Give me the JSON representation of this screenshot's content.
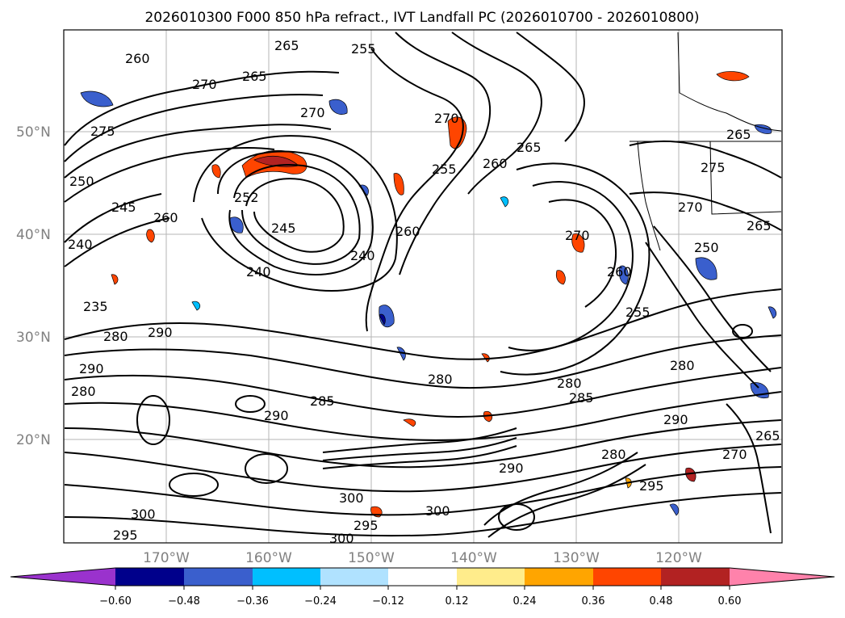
{
  "map": {
    "title": "2026010300 F000 850 hPa refract., IVT Landfall PC (2026010700 - 2026010800)",
    "lat_ticks": [
      "50°N",
      "40°N",
      "30°N",
      "20°N"
    ],
    "lon_ticks": [
      "170°W",
      "160°W",
      "150°W",
      "140°W",
      "130°W",
      "120°W"
    ],
    "tick_color": "#808080",
    "contour_labels": [
      "260",
      "265",
      "255",
      "270",
      "265",
      "270",
      "275",
      "250",
      "245",
      "240",
      "235",
      "260",
      "252",
      "245",
      "240",
      "240",
      "270",
      "260",
      "255",
      "260",
      "265",
      "270",
      "265",
      "275",
      "270",
      "265",
      "260",
      "255",
      "250",
      "280",
      "290",
      "290",
      "280",
      "285",
      "280",
      "280",
      "290",
      "285",
      "290",
      "295",
      "300",
      "300",
      "295",
      "300",
      "280",
      "290",
      "295",
      "300",
      "270",
      "265",
      "280"
    ],
    "colorbar": {
      "colors": [
        "#9a32cd",
        "#00008b",
        "#3a5fcd",
        "#00bfff",
        "#b0e2ff",
        "#ffffff",
        "#ffec8b",
        "#ffa500",
        "#ff4500",
        "#b22222",
        "#ff82ab"
      ],
      "tick_labels": [
        "−0.60",
        "−0.48",
        "−0.36",
        "−0.24",
        "−0.12",
        "0.12",
        "0.24",
        "0.36",
        "0.48",
        "0.60"
      ]
    }
  }
}
